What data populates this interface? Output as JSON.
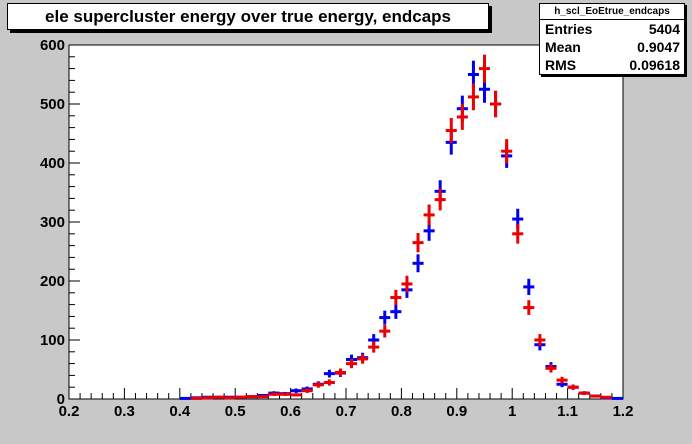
{
  "title": "ele supercluster energy over true energy, endcaps",
  "stats": {
    "name": "h_scl_EoEtrue_endcaps",
    "entries_label": "Entries",
    "entries_value": "5404",
    "mean_label": "Mean",
    "mean_value": "0.9047",
    "rms_label": "RMS",
    "rms_value": "0.09618"
  },
  "colors": {
    "series_a": "#0000ee",
    "series_b": "#ee0000",
    "frame_bg": "#ffffff",
    "page_bg": "#c8c8c8"
  },
  "chart_data": {
    "type": "scatter",
    "xlim": [
      0.2,
      1.2
    ],
    "ylim": [
      0,
      600
    ],
    "x_ticks": [
      "0.2",
      "0.3",
      "0.4",
      "0.5",
      "0.6",
      "0.7",
      "0.8",
      "0.9",
      "1",
      "1.1",
      "1.2"
    ],
    "y_ticks": [
      "0",
      "100",
      "200",
      "300",
      "400",
      "500",
      "600"
    ],
    "bin_width": 0.02,
    "series": [
      {
        "color": "#0000ee",
        "x": [
          0.41,
          0.43,
          0.45,
          0.47,
          0.49,
          0.51,
          0.53,
          0.55,
          0.57,
          0.59,
          0.61,
          0.63,
          0.65,
          0.67,
          0.69,
          0.71,
          0.73,
          0.75,
          0.77,
          0.79,
          0.81,
          0.83,
          0.85,
          0.87,
          0.89,
          0.91,
          0.93,
          0.95,
          0.97,
          0.99,
          1.01,
          1.03,
          1.05,
          1.07,
          1.09,
          1.11,
          1.13,
          1.15,
          1.17,
          1.19
        ],
        "y": [
          1,
          2,
          3,
          3,
          3,
          3,
          4,
          6,
          10,
          9,
          14,
          17,
          25,
          43,
          44,
          67,
          70,
          100,
          138,
          148,
          185,
          230,
          285,
          352,
          435,
          492,
          550,
          525,
          500,
          412,
          305,
          190,
          92,
          55,
          25,
          20,
          10,
          5,
          2,
          1
        ]
      },
      {
        "color": "#ee0000",
        "x": [
          0.41,
          0.43,
          0.45,
          0.47,
          0.49,
          0.51,
          0.53,
          0.55,
          0.57,
          0.59,
          0.61,
          0.63,
          0.65,
          0.67,
          0.69,
          0.71,
          0.73,
          0.75,
          0.77,
          0.79,
          0.81,
          0.83,
          0.85,
          0.87,
          0.89,
          0.91,
          0.93,
          0.95,
          0.97,
          0.99,
          1.01,
          1.03,
          1.05,
          1.07,
          1.09,
          1.11,
          1.13,
          1.15,
          1.17,
          1.19
        ],
        "y": [
          0,
          1,
          2,
          3,
          2,
          3,
          4,
          4,
          8,
          8,
          7,
          14,
          24,
          28,
          45,
          60,
          68,
          88,
          115,
          172,
          195,
          265,
          312,
          338,
          455,
          478,
          512,
          560,
          500,
          420,
          280,
          155,
          100,
          52,
          32,
          20,
          10,
          5,
          3,
          0
        ]
      }
    ]
  }
}
